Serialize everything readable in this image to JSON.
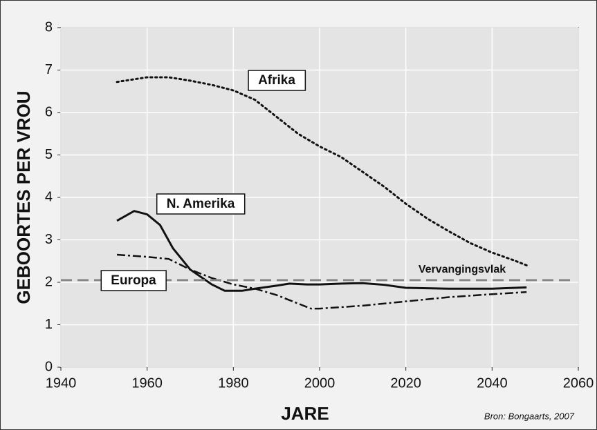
{
  "chart_data": {
    "type": "line",
    "xlabel": "JARE",
    "ylabel": "GEBOORTES PER VROU",
    "source": "Bron: Bongaarts, 2007",
    "xlim": [
      1940,
      2060
    ],
    "xticks": [
      1940,
      1960,
      1980,
      2000,
      2020,
      2040,
      2060
    ],
    "ylim": [
      0,
      8
    ],
    "yticks": [
      0,
      1,
      2,
      3,
      4,
      5,
      6,
      7,
      8
    ],
    "grid": true,
    "series": [
      {
        "name": "Afrika",
        "color": "#111111",
        "style": "dotted",
        "x": [
          1953,
          1960,
          1965,
          1970,
          1975,
          1980,
          1985,
          1990,
          1995,
          2000,
          2005,
          2010,
          2015,
          2020,
          2025,
          2030,
          2035,
          2040,
          2045,
          2048
        ],
        "values": [
          6.72,
          6.83,
          6.83,
          6.75,
          6.65,
          6.52,
          6.3,
          5.9,
          5.5,
          5.2,
          4.95,
          4.6,
          4.25,
          3.85,
          3.5,
          3.2,
          2.92,
          2.7,
          2.52,
          2.4
        ]
      },
      {
        "name": "N. Amerika",
        "color": "#111111",
        "style": "solid",
        "x": [
          1953,
          1957,
          1960,
          1963,
          1966,
          1970,
          1975,
          1978,
          1982,
          1985,
          1990,
          1993,
          1997,
          2000,
          2005,
          2010,
          2015,
          2020,
          2030,
          2040,
          2048
        ],
        "values": [
          3.45,
          3.68,
          3.6,
          3.35,
          2.8,
          2.3,
          1.95,
          1.8,
          1.8,
          1.85,
          1.92,
          1.97,
          1.95,
          1.95,
          1.97,
          1.98,
          1.94,
          1.87,
          1.85,
          1.85,
          1.88
        ]
      },
      {
        "name": "Europa",
        "color": "#111111",
        "style": "dashdot",
        "x": [
          1953,
          1960,
          1965,
          1970,
          1975,
          1980,
          1985,
          1990,
          1995,
          1998,
          2000,
          2010,
          2020,
          2030,
          2040,
          2048
        ],
        "values": [
          2.65,
          2.6,
          2.55,
          2.3,
          2.1,
          1.95,
          1.85,
          1.7,
          1.5,
          1.38,
          1.38,
          1.45,
          1.55,
          1.65,
          1.72,
          1.77
        ]
      },
      {
        "name": "Vervangingsvlak",
        "color": "#888888",
        "style": "dashed",
        "x": [
          1940,
          2059
        ],
        "values": [
          2.05,
          2.05
        ]
      }
    ]
  }
}
